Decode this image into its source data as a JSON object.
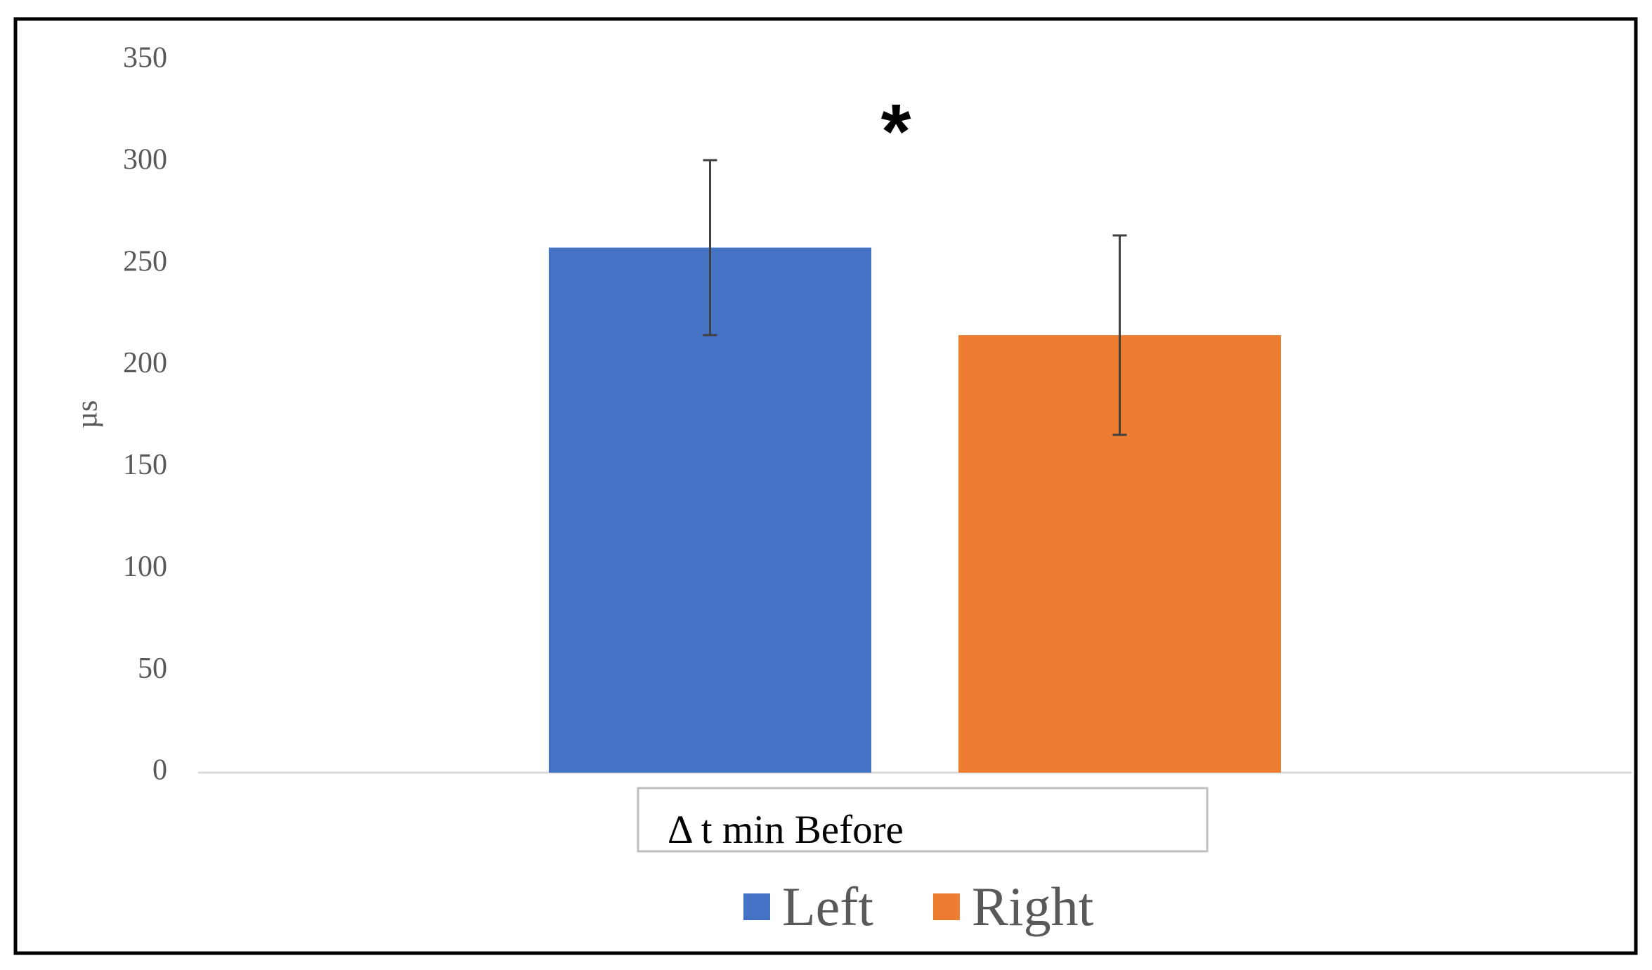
{
  "chart_data": {
    "type": "bar",
    "ylabel": "µs",
    "annotation": "*",
    "categories": [
      "Δ t min Before"
    ],
    "series": [
      {
        "name": "Left",
        "color": "#4472c4",
        "values": [
          258
        ],
        "errors": [
          43
        ]
      },
      {
        "name": "Right",
        "color": "#ed7d31",
        "values": [
          215
        ],
        "errors": [
          49
        ]
      }
    ],
    "ylim": [
      0,
      350
    ],
    "yticks": [
      0,
      50,
      100,
      150,
      200,
      250,
      300,
      350
    ],
    "legend": "bottom"
  }
}
